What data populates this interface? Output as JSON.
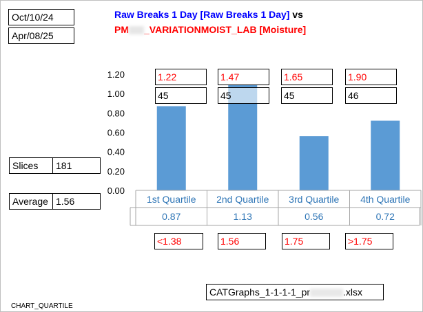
{
  "dates": {
    "start": "Oct/10/24",
    "end": "Apr/08/25"
  },
  "title": {
    "line1": "Raw Breaks 1 Day [Raw Breaks 1 Day]",
    "vs": "vs",
    "line2_prefix": "PM",
    "line2_suffix": "_VARIATIONMOIST_LAB [Moisture]"
  },
  "stats": {
    "slices_label": "Slices",
    "slices_value": "181",
    "average_label": "Average",
    "average_value": "1.56"
  },
  "footer": "CHART_QUARTILE",
  "file": {
    "prefix": "CATGraphs_1-1-1-1_pr",
    "suffix": ".xlsx"
  },
  "chart_data": {
    "type": "bar",
    "categories": [
      "1st Quartile",
      "2nd Quartile",
      "3rd Quartile",
      "4th Quartile"
    ],
    "values": [
      0.87,
      1.13,
      0.56,
      0.72
    ],
    "value_labels": [
      "0.87",
      "1.13",
      "0.56",
      "0.72"
    ],
    "upper_labels": [
      "1.22",
      "1.47",
      "1.65",
      "1.90"
    ],
    "count_labels": [
      "45",
      "45",
      "45",
      "46"
    ],
    "range_labels": [
      "<1.38",
      "1.56",
      "1.75",
      ">1.75"
    ],
    "yticks": [
      "0.00",
      "0.20",
      "0.40",
      "0.60",
      "0.80",
      "1.00",
      "1.20"
    ],
    "ylim": [
      0,
      1.2
    ],
    "bar_color": "#5b9bd5",
    "grid": false
  }
}
